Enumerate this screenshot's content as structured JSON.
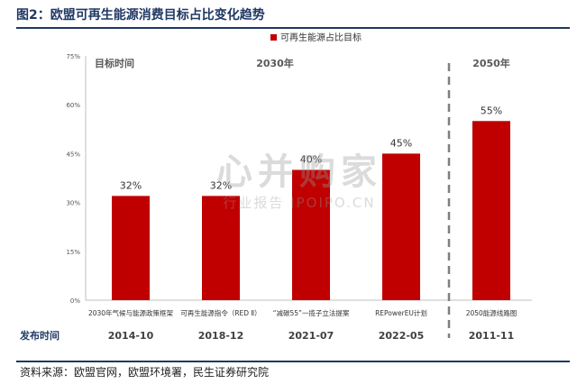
{
  "title": "图2：欧盟可再生能源消费目标占比变化趋势",
  "source": "资料来源：欧盟官网，欧盟环境署，民生证券研究院",
  "watermark": {
    "main": "心并购家",
    "sub": "行业报告 IPOIPO.CN"
  },
  "colors": {
    "bar": "#c00000",
    "heading": "#1f3864",
    "divider": "#7f7f7f"
  },
  "chart_data": {
    "type": "bar",
    "categories": [
      "2030年气候与能源政策框架",
      "可再生能源指令（RED Ⅱ）",
      "“减碳55”一揽子立法提案",
      "REPowerEU计划",
      "2050能源线路图"
    ],
    "release_dates": [
      "2014-10",
      "2018-12",
      "2021-07",
      "2022-05",
      "2011-11"
    ],
    "row_label": "发布时间",
    "series": [
      {
        "name": "可再生能源占比目标",
        "values": [
          32,
          32,
          40,
          45,
          55
        ]
      }
    ],
    "data_labels": [
      "32%",
      "32%",
      "40%",
      "45%",
      "55%"
    ],
    "ylim": [
      0,
      75
    ],
    "yticks": [
      0,
      15,
      30,
      45,
      60,
      75
    ],
    "ytick_labels": [
      "0%",
      "15%",
      "30%",
      "45%",
      "60%",
      "75%"
    ],
    "groups": [
      {
        "label": "目标时间",
        "span": [
          0,
          0
        ]
      },
      {
        "label": "2030年",
        "span": [
          0,
          3
        ]
      },
      {
        "label": "2050年",
        "span": [
          4,
          4
        ]
      }
    ],
    "legend": "top-right",
    "grid": false
  }
}
